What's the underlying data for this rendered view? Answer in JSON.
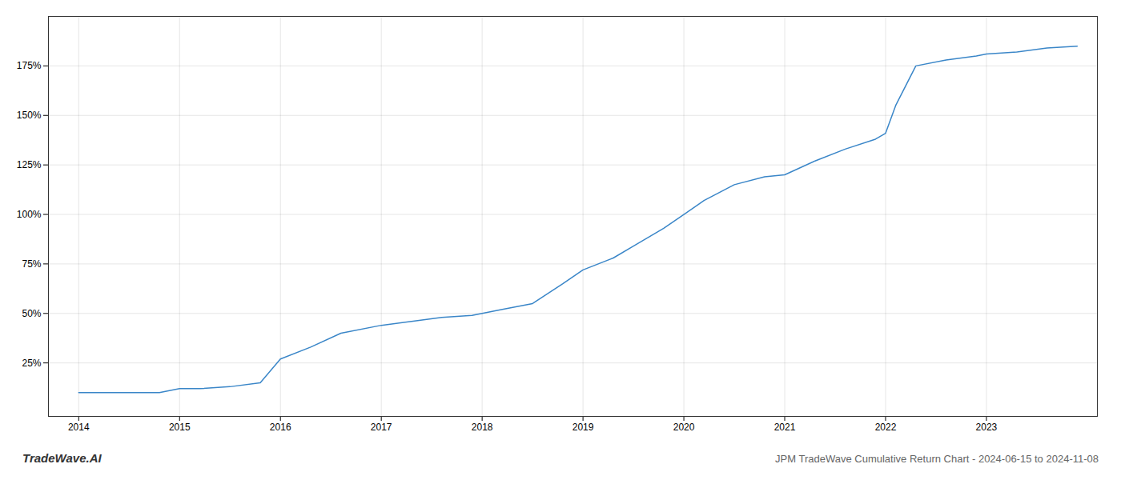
{
  "chart_data": {
    "type": "line",
    "title": "JPM TradeWave Cumulative Return Chart - 2024-06-15 to 2024-11-08",
    "annotations": [
      "TradeWave.AI"
    ],
    "x": [
      2014.0,
      2014.4,
      2014.8,
      2015.0,
      2015.2,
      2015.5,
      2015.8,
      2016.0,
      2016.3,
      2016.6,
      2017.0,
      2017.3,
      2017.6,
      2017.9,
      2018.0,
      2018.2,
      2018.5,
      2018.8,
      2019.0,
      2019.3,
      2019.5,
      2019.8,
      2020.0,
      2020.2,
      2020.5,
      2020.8,
      2021.0,
      2021.3,
      2021.6,
      2021.9,
      2022.0,
      2022.1,
      2022.3,
      2022.6,
      2022.9,
      2023.0,
      2023.3,
      2023.6,
      2023.9
    ],
    "values": [
      10,
      10,
      10,
      12,
      12,
      13,
      15,
      27,
      33,
      40,
      44,
      46,
      48,
      49,
      50,
      52,
      55,
      65,
      72,
      78,
      84,
      93,
      100,
      107,
      115,
      119,
      120,
      127,
      133,
      138,
      141,
      155,
      175,
      178,
      180,
      181,
      182,
      184,
      185
    ],
    "color": "#3a86c8",
    "xlim": [
      2013.7,
      2024.1
    ],
    "ylim": [
      -2,
      200
    ],
    "xticks": [
      2014,
      2015,
      2016,
      2017,
      2018,
      2019,
      2020,
      2021,
      2022,
      2023
    ],
    "yticks": [
      {
        "value": 25,
        "label": "25%"
      },
      {
        "value": 50,
        "label": "50%"
      },
      {
        "value": 75,
        "label": "75%"
      },
      {
        "value": 100,
        "label": "100%"
      },
      {
        "value": 125,
        "label": "125%"
      },
      {
        "value": 150,
        "label": "150%"
      },
      {
        "value": 175,
        "label": "175%"
      }
    ],
    "grid": true
  }
}
